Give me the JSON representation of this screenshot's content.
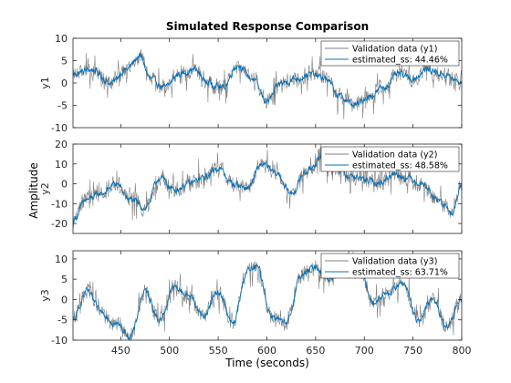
{
  "chart_data": {
    "type": "line",
    "title": "Simulated Response Comparison",
    "xlabel": "Time (seconds)",
    "ylabel_shared": "Amplitude",
    "xlim": [
      401,
      800
    ],
    "xticks": [
      450,
      500,
      550,
      600,
      650,
      700,
      750,
      800
    ],
    "colors": {
      "validation": "#808080",
      "estimated": "#0072bd"
    },
    "panels": [
      {
        "ylabel": "y1",
        "ylim": [
          -10,
          10
        ],
        "yticks": [
          -10,
          -5,
          0,
          5,
          10
        ],
        "legend_location": "top-right",
        "series": [
          {
            "name": "Validation data (y1)"
          },
          {
            "name": "estimated_ss: 44.46%"
          }
        ],
        "x": [
          401,
          420,
          440,
          455,
          470,
          480,
          495,
          510,
          525,
          540,
          555,
          570,
          585,
          600,
          615,
          630,
          645,
          660,
          675,
          690,
          705,
          720,
          735,
          750,
          765,
          780,
          800
        ],
        "estimated": [
          2,
          3,
          0,
          3,
          6,
          1,
          -1,
          2,
          3,
          0,
          -1,
          4,
          1,
          -4,
          0,
          1,
          2,
          1,
          -3,
          -5,
          -3,
          -1,
          2,
          1,
          3,
          2,
          0
        ]
      },
      {
        "ylabel": "y2",
        "ylim": [
          -25,
          20
        ],
        "yticks": [
          -20,
          -10,
          0,
          10,
          20
        ],
        "legend_location": "top-right",
        "series": [
          {
            "name": "Validation data (y2)"
          },
          {
            "name": "estimated_ss: 48.58%"
          }
        ],
        "x": [
          401,
          415,
          430,
          445,
          460,
          475,
          490,
          505,
          520,
          535,
          550,
          565,
          580,
          595,
          610,
          625,
          640,
          655,
          670,
          685,
          700,
          715,
          730,
          745,
          760,
          775,
          790,
          800
        ],
        "estimated": [
          -18,
          -8,
          -5,
          0,
          -8,
          -12,
          3,
          -3,
          0,
          3,
          8,
          0,
          -2,
          10,
          5,
          -5,
          6,
          12,
          8,
          4,
          2,
          0,
          5,
          3,
          0,
          -8,
          -15,
          0
        ]
      },
      {
        "ylabel": "y3",
        "ylim": [
          -10,
          12
        ],
        "yticks": [
          -10,
          -5,
          0,
          5,
          10
        ],
        "legend_location": "top-right",
        "series": [
          {
            "name": "Validation data (y3)"
          },
          {
            "name": "estimated_ss: 63.71%"
          }
        ],
        "x": [
          401,
          415,
          430,
          445,
          460,
          475,
          490,
          505,
          520,
          535,
          550,
          565,
          580,
          590,
          605,
          620,
          635,
          650,
          665,
          680,
          695,
          710,
          725,
          740,
          755,
          770,
          785,
          800
        ],
        "estimated": [
          -5,
          2,
          -3,
          -6,
          -9,
          2,
          -5,
          3,
          1,
          -4,
          2,
          -6,
          7,
          8,
          -4,
          -6,
          6,
          8,
          5,
          10,
          7,
          -1,
          2,
          4,
          -5,
          0,
          -7,
          0
        ]
      }
    ]
  }
}
